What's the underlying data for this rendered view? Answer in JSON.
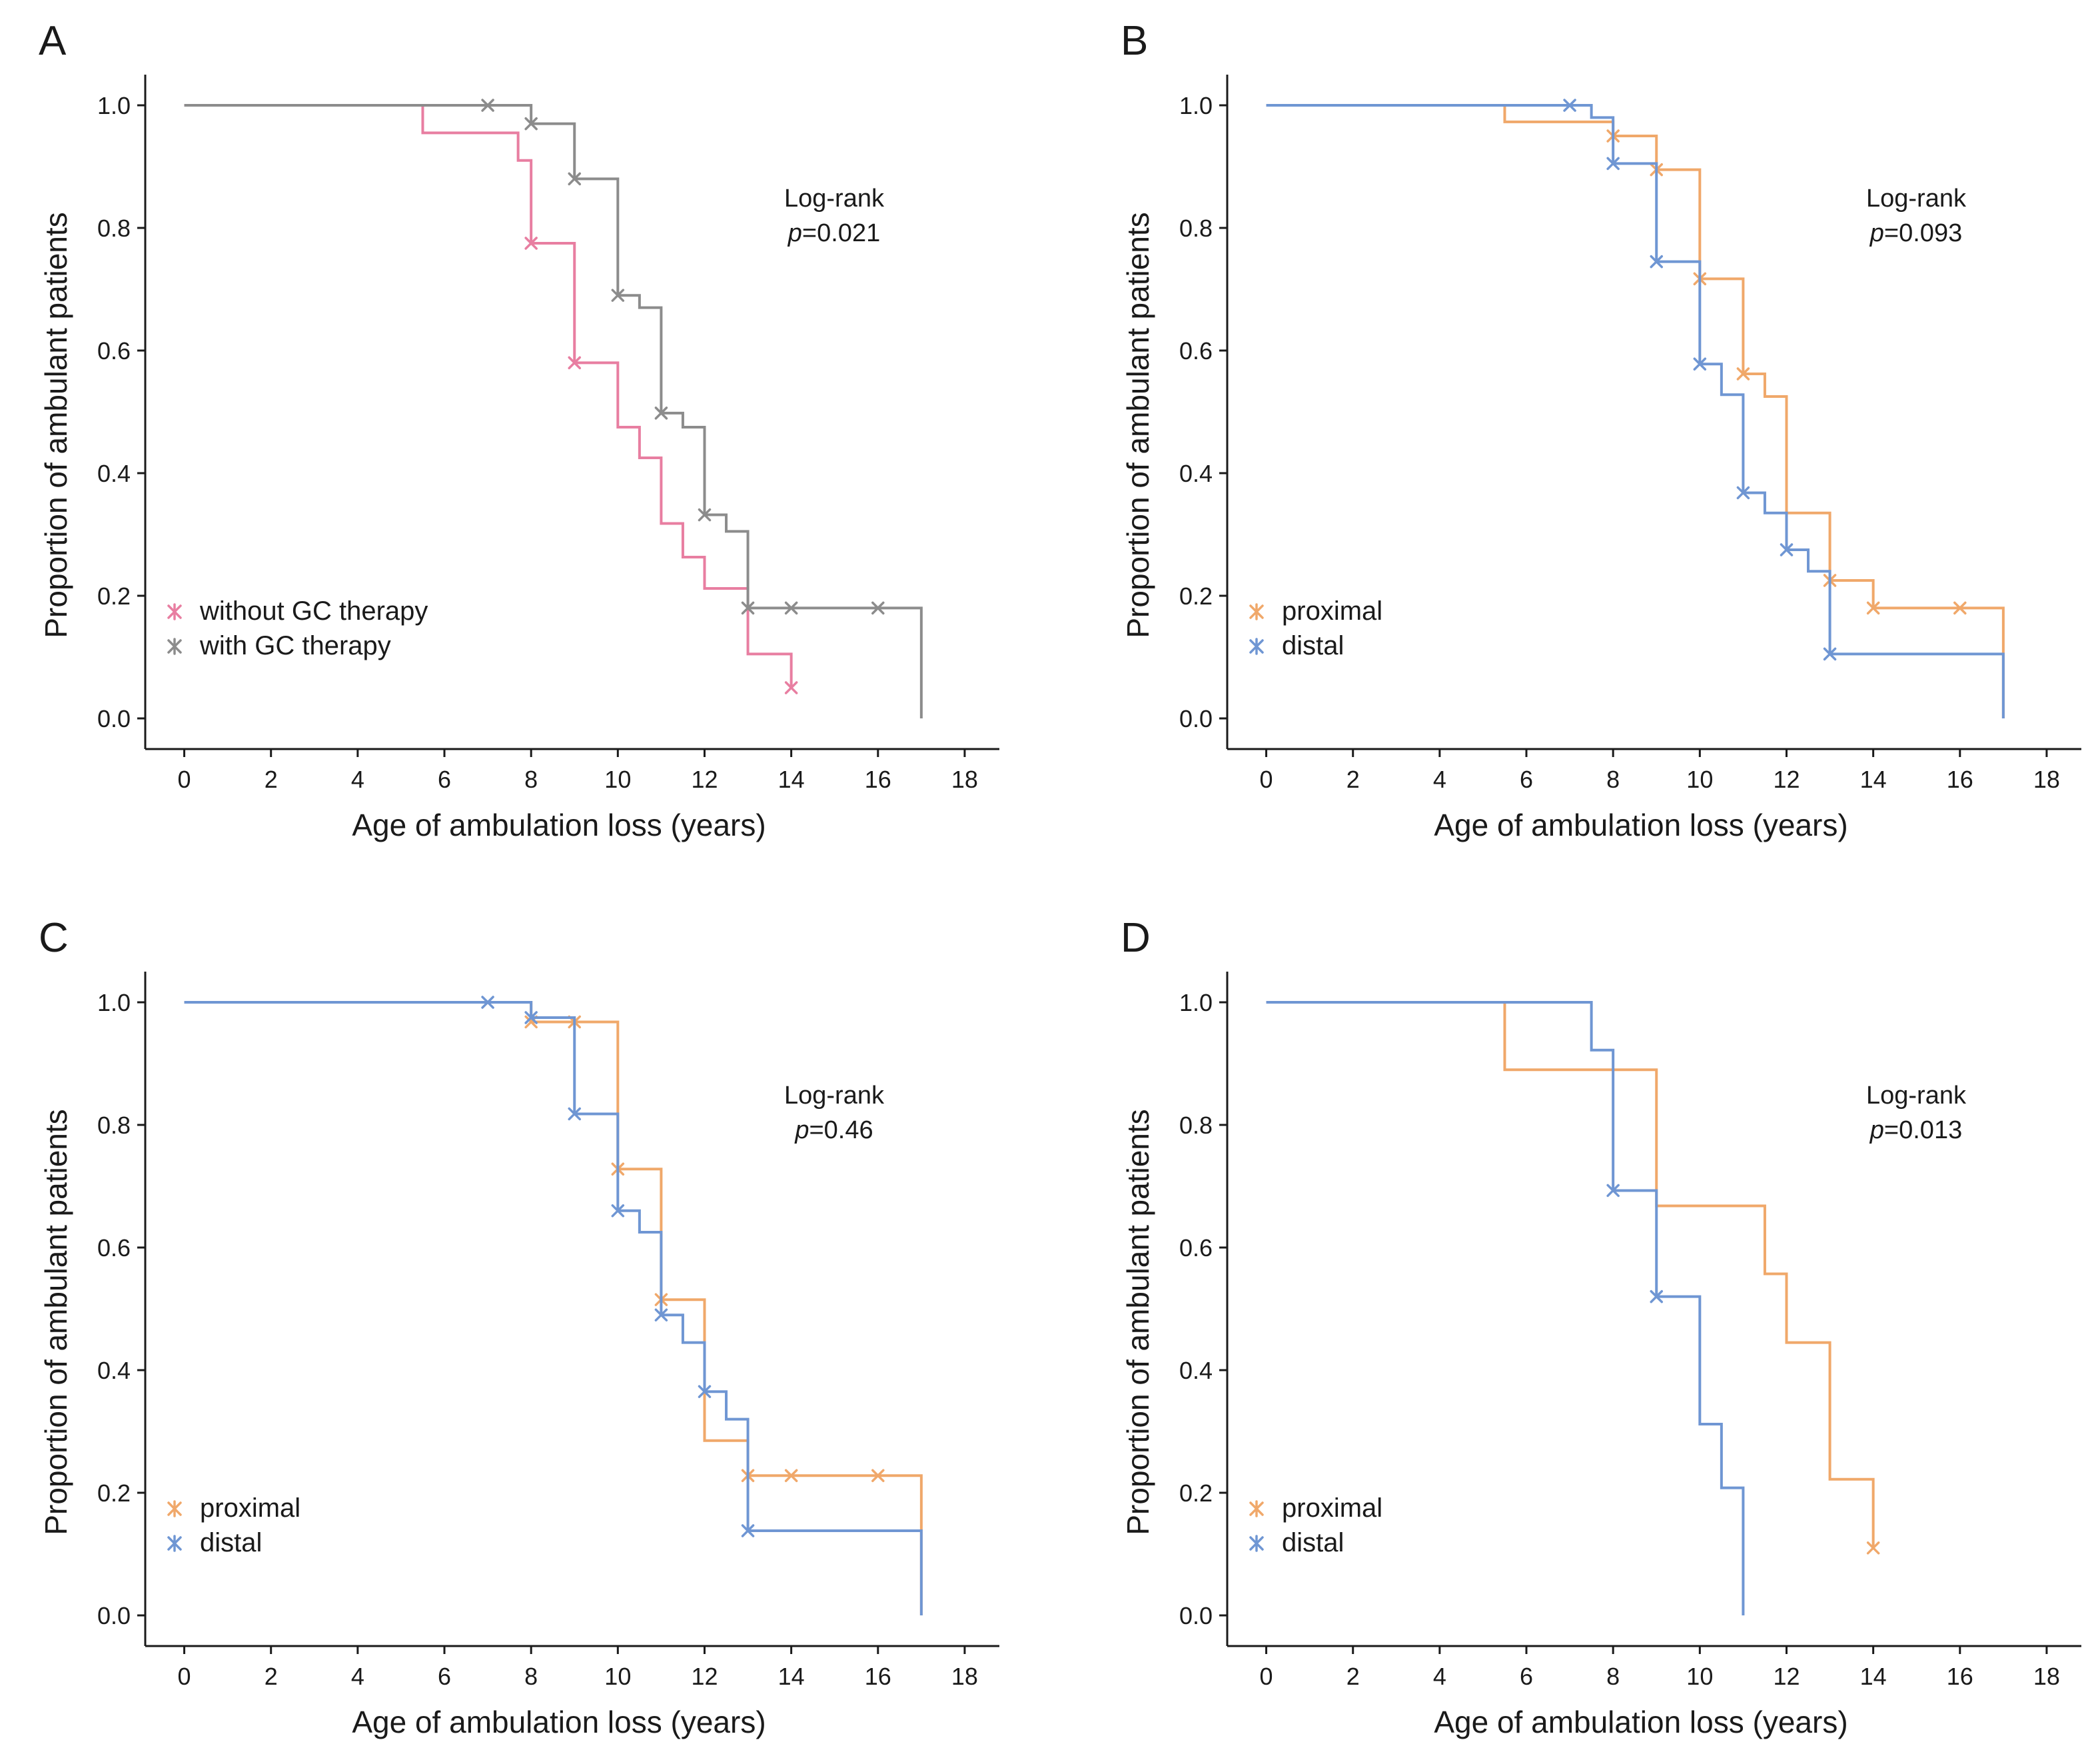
{
  "chart_data": [
    {
      "type": "line",
      "subtype": "kaplan-meier",
      "panel_label": "A",
      "xlabel": "Age of ambulation loss (years)",
      "ylabel": "Proportion of ambulant patients",
      "xlim": [
        -0.9,
        18.8
      ],
      "ylim": [
        -0.05,
        1.05
      ],
      "x_ticks": [
        0,
        2,
        4,
        6,
        8,
        10,
        12,
        14,
        16,
        18
      ],
      "y_ticks": [
        0.0,
        0.2,
        0.4,
        0.6,
        0.8,
        1.0
      ],
      "annotation": {
        "line1": "Log-rank",
        "p_italic": "p",
        "p_value": "=0.021"
      },
      "legend_position": "bottom-left",
      "series": [
        {
          "name": "without GC therapy",
          "color": "#e87ea1",
          "steps": [
            [
              0,
              1.0
            ],
            [
              5.5,
              0.955
            ],
            [
              7.7,
              0.91
            ],
            [
              8,
              0.775
            ],
            [
              9,
              0.58
            ],
            [
              10,
              0.475
            ],
            [
              10.5,
              0.425
            ],
            [
              11,
              0.318
            ],
            [
              11.5,
              0.263
            ],
            [
              12,
              0.212
            ],
            [
              13,
              0.105
            ],
            [
              14,
              0.05
            ]
          ],
          "end": 14,
          "censored": [
            [
              8,
              0.775
            ],
            [
              9,
              0.58
            ],
            [
              14,
              0.05
            ]
          ]
        },
        {
          "name": "with GC therapy",
          "color": "#8c8c8c",
          "steps": [
            [
              0,
              1.0
            ],
            [
              8,
              0.97
            ],
            [
              9,
              0.88
            ],
            [
              10,
              0.69
            ],
            [
              10.5,
              0.67
            ],
            [
              11,
              0.498
            ],
            [
              11.5,
              0.475
            ],
            [
              12,
              0.332
            ],
            [
              12.5,
              0.305
            ],
            [
              13,
              0.18
            ],
            [
              17,
              0.0
            ]
          ],
          "end": 17,
          "censored": [
            [
              7,
              1.0
            ],
            [
              8,
              0.97
            ],
            [
              9,
              0.88
            ],
            [
              10,
              0.69
            ],
            [
              11,
              0.498
            ],
            [
              12,
              0.332
            ],
            [
              13,
              0.18
            ],
            [
              14,
              0.18
            ],
            [
              16,
              0.18
            ]
          ]
        }
      ]
    },
    {
      "type": "line",
      "subtype": "kaplan-meier",
      "panel_label": "B",
      "xlabel": "Age of ambulation loss (years)",
      "ylabel": "Proportion of ambulant patients",
      "xlim": [
        -0.9,
        18.8
      ],
      "ylim": [
        -0.05,
        1.05
      ],
      "x_ticks": [
        0,
        2,
        4,
        6,
        8,
        10,
        12,
        14,
        16,
        18
      ],
      "y_ticks": [
        0.0,
        0.2,
        0.4,
        0.6,
        0.8,
        1.0
      ],
      "annotation": {
        "line1": "Log-rank",
        "p_italic": "p",
        "p_value": "=0.093"
      },
      "legend_position": "bottom-left",
      "series": [
        {
          "name": "proximal",
          "color": "#f0a86a",
          "steps": [
            [
              0,
              1.0
            ],
            [
              5.5,
              0.973
            ],
            [
              8,
              0.95
            ],
            [
              9,
              0.895
            ],
            [
              10,
              0.717
            ],
            [
              11,
              0.562
            ],
            [
              11.5,
              0.525
            ],
            [
              12,
              0.335
            ],
            [
              13,
              0.225
            ],
            [
              14,
              0.18
            ],
            [
              17,
              0.0
            ]
          ],
          "end": 17,
          "censored": [
            [
              8,
              0.95
            ],
            [
              9,
              0.895
            ],
            [
              10,
              0.717
            ],
            [
              11,
              0.562
            ],
            [
              13,
              0.225
            ],
            [
              14,
              0.18
            ],
            [
              16,
              0.18
            ]
          ]
        },
        {
          "name": "distal",
          "color": "#6f96d3",
          "steps": [
            [
              0,
              1.0
            ],
            [
              7.5,
              0.98
            ],
            [
              8,
              0.905
            ],
            [
              9,
              0.745
            ],
            [
              10,
              0.578
            ],
            [
              10.5,
              0.528
            ],
            [
              11,
              0.368
            ],
            [
              11.5,
              0.335
            ],
            [
              12,
              0.275
            ],
            [
              12.5,
              0.24
            ],
            [
              13,
              0.105
            ],
            [
              17,
              0.0
            ]
          ],
          "end": 17,
          "censored": [
            [
              7,
              1.0
            ],
            [
              8,
              0.905
            ],
            [
              9,
              0.745
            ],
            [
              10,
              0.578
            ],
            [
              11,
              0.368
            ],
            [
              12,
              0.275
            ],
            [
              13,
              0.105
            ]
          ]
        }
      ]
    },
    {
      "type": "line",
      "subtype": "kaplan-meier",
      "panel_label": "C",
      "xlabel": "Age of ambulation loss (years)",
      "ylabel": "Proportion of ambulant patients",
      "xlim": [
        -0.9,
        18.8
      ],
      "ylim": [
        -0.05,
        1.05
      ],
      "x_ticks": [
        0,
        2,
        4,
        6,
        8,
        10,
        12,
        14,
        16,
        18
      ],
      "y_ticks": [
        0.0,
        0.2,
        0.4,
        0.6,
        0.8,
        1.0
      ],
      "annotation": {
        "line1": "Log-rank",
        "p_italic": "p",
        "p_value": "=0.46"
      },
      "legend_position": "bottom-left",
      "series": [
        {
          "name": "proximal",
          "color": "#f0a86a",
          "steps": [
            [
              0,
              1.0
            ],
            [
              8,
              0.968
            ],
            [
              10,
              0.728
            ],
            [
              11,
              0.515
            ],
            [
              12,
              0.285
            ],
            [
              13,
              0.228
            ],
            [
              17,
              0.0
            ]
          ],
          "end": 17,
          "censored": [
            [
              8,
              0.968
            ],
            [
              9,
              0.968
            ],
            [
              10,
              0.728
            ],
            [
              11,
              0.515
            ],
            [
              13,
              0.228
            ],
            [
              14,
              0.228
            ],
            [
              16,
              0.228
            ]
          ]
        },
        {
          "name": "distal",
          "color": "#6f96d3",
          "steps": [
            [
              0,
              1.0
            ],
            [
              8,
              0.975
            ],
            [
              9,
              0.818
            ],
            [
              10,
              0.66
            ],
            [
              10.5,
              0.625
            ],
            [
              11,
              0.49
            ],
            [
              11.5,
              0.445
            ],
            [
              12,
              0.365
            ],
            [
              12.5,
              0.32
            ],
            [
              13,
              0.138
            ],
            [
              17,
              0.0
            ]
          ],
          "end": 17,
          "censored": [
            [
              7,
              1.0
            ],
            [
              8,
              0.975
            ],
            [
              9,
              0.818
            ],
            [
              10,
              0.66
            ],
            [
              11,
              0.49
            ],
            [
              12,
              0.365
            ],
            [
              13,
              0.138
            ]
          ]
        }
      ]
    },
    {
      "type": "line",
      "subtype": "kaplan-meier",
      "panel_label": "D",
      "xlabel": "Age of ambulation loss (years)",
      "ylabel": "Proportion of ambulant patients",
      "xlim": [
        -0.9,
        18.8
      ],
      "ylim": [
        -0.05,
        1.05
      ],
      "x_ticks": [
        0,
        2,
        4,
        6,
        8,
        10,
        12,
        14,
        16,
        18
      ],
      "y_ticks": [
        0.0,
        0.2,
        0.4,
        0.6,
        0.8,
        1.0
      ],
      "annotation": {
        "line1": "Log-rank",
        "p_italic": "p",
        "p_value": "=0.013"
      },
      "legend_position": "bottom-left",
      "series": [
        {
          "name": "proximal",
          "color": "#f0a86a",
          "steps": [
            [
              0,
              1.0
            ],
            [
              5.5,
              0.89
            ],
            [
              9,
              0.668
            ],
            [
              11.5,
              0.557
            ],
            [
              12,
              0.445
            ],
            [
              13,
              0.222
            ],
            [
              14,
              0.11
            ]
          ],
          "end": 14,
          "censored": [
            [
              14,
              0.11
            ]
          ]
        },
        {
          "name": "distal",
          "color": "#6f96d3",
          "steps": [
            [
              0,
              1.0
            ],
            [
              7.5,
              0.922
            ],
            [
              8,
              0.693
            ],
            [
              9,
              0.52
            ],
            [
              10,
              0.312
            ],
            [
              10.5,
              0.208
            ],
            [
              11,
              0.0
            ]
          ],
          "end": 11,
          "censored": [
            [
              8,
              0.693
            ],
            [
              9,
              0.52
            ]
          ]
        }
      ]
    }
  ]
}
